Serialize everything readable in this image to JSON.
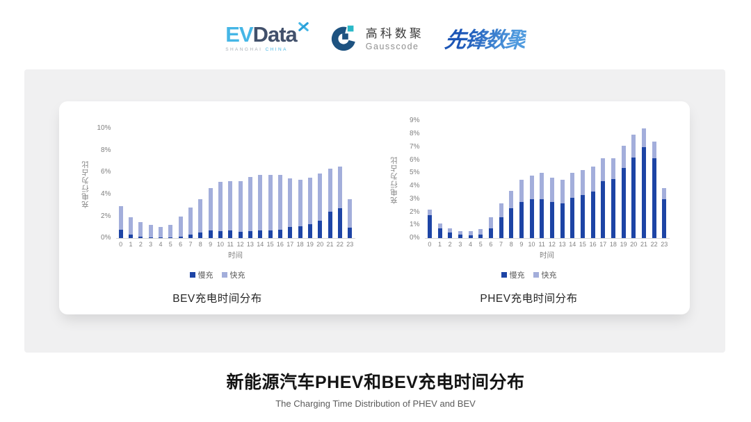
{
  "header": {
    "evdata": {
      "ev": "EV",
      "data": "Data",
      "sub_left": "SHANGHAI",
      "sub_right": "CHINA"
    },
    "gausscode": {
      "cn": "高科数聚",
      "en": "Gausscode"
    },
    "pioneer": {
      "text": "先锋数聚"
    }
  },
  "colors": {
    "slow": "#1d44a5",
    "fast": "#a3aedb",
    "band": "#f0f0f1",
    "axis_line": "#d4d4d4",
    "tick_text": "#7f7f7f",
    "evdata_blue": "#45b6e6",
    "evdata_slate": "#41506b",
    "gauss_navy": "#1d5280",
    "gauss_teal": "#2ab9c8",
    "pioneer_blue": "#2b6cc8"
  },
  "chart_data": [
    {
      "type": "bar",
      "stacked": true,
      "name": "BEV",
      "title": "BEV充电时间分布",
      "xlabel": "时间",
      "ylabel": "充电行为占比",
      "ylim": [
        0,
        10
      ],
      "yticks": [
        "0%",
        "2%",
        "4%",
        "6%",
        "8%",
        "10%"
      ],
      "grid": false,
      "legend_position": "bottom",
      "categories": [
        "0",
        "1",
        "2",
        "3",
        "4",
        "5",
        "6",
        "7",
        "8",
        "9",
        "10",
        "11",
        "12",
        "13",
        "14",
        "15",
        "16",
        "17",
        "18",
        "19",
        "20",
        "21",
        "22",
        "23"
      ],
      "series": [
        {
          "name": "慢充",
          "values": [
            0.75,
            0.35,
            0.15,
            0.1,
            0.1,
            0.1,
            0.15,
            0.35,
            0.5,
            0.7,
            0.65,
            0.7,
            0.6,
            0.65,
            0.7,
            0.7,
            0.8,
            1.0,
            1.1,
            1.3,
            1.6,
            2.45,
            2.75,
            0.95
          ]
        },
        {
          "name": "快充",
          "values": [
            2.15,
            1.55,
            1.35,
            1.1,
            0.95,
            1.1,
            1.85,
            2.45,
            3.05,
            3.9,
            4.5,
            4.5,
            4.6,
            4.95,
            5.1,
            5.05,
            5.0,
            4.45,
            4.2,
            4.25,
            4.3,
            3.9,
            3.8,
            2.6
          ]
        }
      ]
    },
    {
      "type": "bar",
      "stacked": true,
      "name": "PHEV",
      "title": "PHEV充电时间分布",
      "xlabel": "时间",
      "ylabel": "充电行为占比",
      "ylim": [
        0,
        9
      ],
      "yticks": [
        "0%",
        "1%",
        "2%",
        "3%",
        "4%",
        "5%",
        "6%",
        "7%",
        "8%",
        "9%"
      ],
      "grid": false,
      "legend_position": "bottom",
      "categories": [
        "0",
        "1",
        "2",
        "3",
        "4",
        "5",
        "6",
        "7",
        "8",
        "9",
        "10",
        "11",
        "12",
        "13",
        "14",
        "15",
        "16",
        "17",
        "18",
        "19",
        "20",
        "21",
        "22",
        "23"
      ],
      "series": [
        {
          "name": "慢充",
          "values": [
            1.75,
            0.75,
            0.45,
            0.3,
            0.25,
            0.3,
            0.75,
            1.6,
            2.3,
            2.8,
            3.0,
            3.0,
            2.8,
            2.65,
            3.1,
            3.3,
            3.6,
            4.4,
            4.55,
            5.4,
            6.2,
            7.0,
            6.15,
            3.0
          ]
        },
        {
          "name": "快充",
          "values": [
            0.45,
            0.4,
            0.3,
            0.25,
            0.3,
            0.4,
            0.85,
            1.1,
            1.35,
            1.7,
            1.8,
            2.0,
            1.85,
            1.85,
            1.9,
            1.95,
            1.9,
            1.75,
            1.6,
            1.7,
            1.75,
            1.45,
            1.25,
            0.85
          ]
        }
      ]
    }
  ],
  "footer": {
    "title": "新能源汽车PHEV和BEV充电时间分布",
    "subtitle": "The Charging Time Distribution of PHEV and BEV"
  }
}
